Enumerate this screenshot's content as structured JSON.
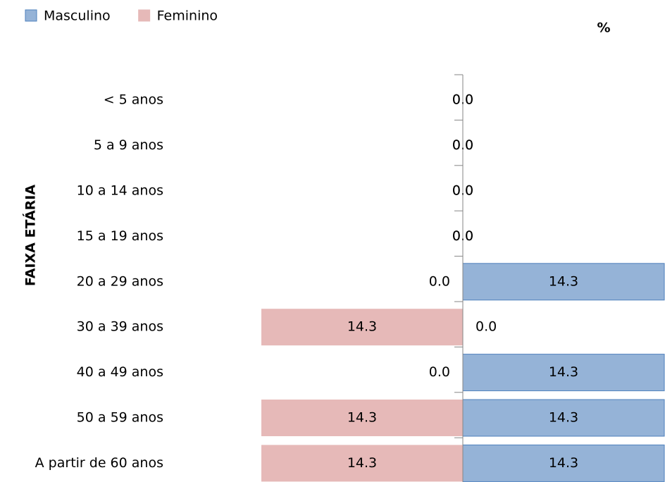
{
  "chart_data": {
    "type": "pyramid",
    "y_label": "FAIXA ETÁRIA",
    "x_label": "%",
    "categories": [
      "< 5 anos",
      "5 a 9 anos",
      "10 a 14 anos",
      "15 a 19 anos",
      "20 a 29 anos",
      "30 a 39 anos",
      "40 a 49 anos",
      "50 a 59 anos",
      "A partir de 60 anos"
    ],
    "series": [
      {
        "name": "Masculino",
        "color": "#95b3d7",
        "side": "right",
        "values": [
          0,
          0,
          0,
          0,
          14.3,
          0,
          14.3,
          14.3,
          14.3
        ],
        "value_labels": [
          "0.0",
          "0.0",
          "0.0",
          "0.0",
          "14.3",
          "0.0",
          "14.3",
          "14.3",
          "14.3"
        ]
      },
      {
        "name": "Feminino",
        "color": "#e6b9b8",
        "side": "left",
        "values": [
          0,
          0,
          0,
          0,
          0,
          14.3,
          0,
          14.3,
          14.3
        ],
        "value_labels": [
          "0.0",
          "0.0",
          "0.0",
          "0.0",
          "0.0",
          "14.3",
          "0.0",
          "14.3",
          "14.3"
        ]
      }
    ]
  }
}
